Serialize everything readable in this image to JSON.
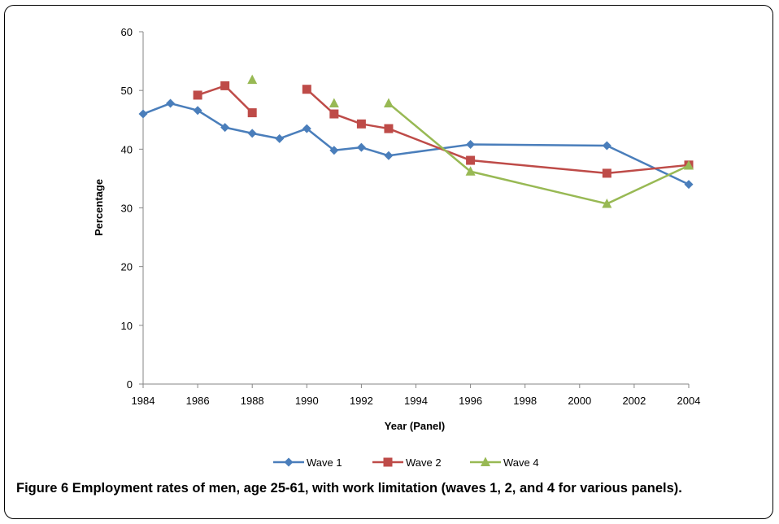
{
  "chart_data": {
    "type": "line",
    "xlabel": "Year (Panel)",
    "ylabel": "Percentage",
    "xlim": [
      1984,
      2004
    ],
    "ylim": [
      0,
      60
    ],
    "x_ticks": [
      "1984",
      "1986",
      "1988",
      "1990",
      "1992",
      "1994",
      "1996",
      "1998",
      "2000",
      "2002",
      "2004"
    ],
    "y_ticks": [
      "0",
      "10",
      "20",
      "30",
      "40",
      "50",
      "60"
    ],
    "legend_position": "bottom",
    "series": [
      {
        "name": "Wave 1",
        "color": "#4a7ebb",
        "marker": "diamond",
        "segments": [
          [
            [
              1984,
              46.0
            ],
            [
              1985,
              47.8
            ],
            [
              1986,
              46.6
            ],
            [
              1987,
              43.7
            ],
            [
              1988,
              42.7
            ],
            [
              1989,
              41.8
            ],
            [
              1990,
              43.5
            ],
            [
              1991,
              39.8
            ],
            [
              1992,
              40.3
            ],
            [
              1993,
              38.9
            ],
            [
              1996,
              40.8
            ],
            [
              2001,
              40.6
            ],
            [
              2004,
              34.0
            ]
          ]
        ]
      },
      {
        "name": "Wave 2",
        "color": "#be4b48",
        "marker": "square",
        "segments": [
          [
            [
              1986,
              49.2
            ],
            [
              1987,
              50.8
            ],
            [
              1988,
              46.2
            ]
          ],
          [
            [
              1990,
              50.2
            ],
            [
              1991,
              46.0
            ],
            [
              1992,
              44.3
            ],
            [
              1993,
              43.5
            ],
            [
              1996,
              38.1
            ],
            [
              2001,
              35.9
            ],
            [
              2004,
              37.3
            ]
          ]
        ]
      },
      {
        "name": "Wave 4",
        "color": "#98b954",
        "marker": "triangle",
        "segments": [
          [
            [
              1988,
              51.8
            ]
          ],
          [
            [
              1991,
              47.8
            ]
          ],
          [
            [
              1993,
              47.8
            ],
            [
              1996,
              36.2
            ],
            [
              2001,
              30.7
            ],
            [
              2004,
              37.2
            ]
          ]
        ]
      }
    ]
  },
  "caption": {
    "label": "Figure 6",
    "text": "Employment rates of men, age 25-61, with work limitation (waves 1, 2, and 4 for various panels)."
  }
}
